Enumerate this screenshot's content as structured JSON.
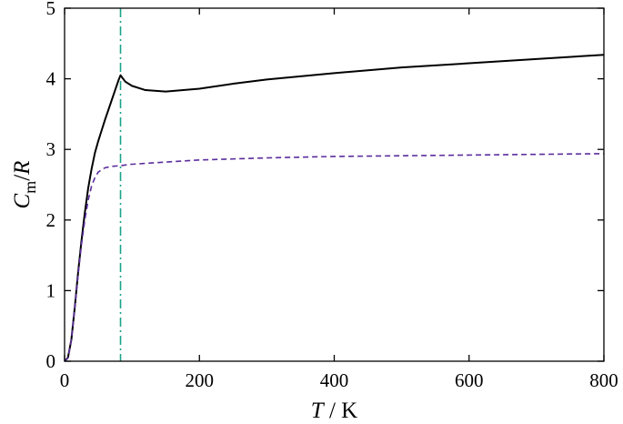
{
  "chart_data": {
    "type": "line",
    "xlabel": {
      "var": "T",
      "unit": "K"
    },
    "ylabel": {
      "var": "C",
      "sub": "m",
      "den": "R"
    },
    "xlim": [
      0,
      800
    ],
    "ylim": [
      0,
      5
    ],
    "x_ticks": [
      0,
      200,
      400,
      600,
      800
    ],
    "y_ticks": [
      0,
      1,
      2,
      3,
      4,
      5
    ],
    "grid": false,
    "legend": "none",
    "vertical_line": {
      "x": 83,
      "style": "dash-dot",
      "color": "#1aa38a"
    },
    "series": [
      {
        "style": "solid",
        "color": "#000000",
        "points": [
          [
            0,
            0
          ],
          [
            5,
            0.05
          ],
          [
            10,
            0.3
          ],
          [
            15,
            0.75
          ],
          [
            20,
            1.25
          ],
          [
            25,
            1.7
          ],
          [
            30,
            2.1
          ],
          [
            35,
            2.45
          ],
          [
            40,
            2.72
          ],
          [
            45,
            2.95
          ],
          [
            50,
            3.12
          ],
          [
            55,
            3.27
          ],
          [
            60,
            3.42
          ],
          [
            65,
            3.56
          ],
          [
            70,
            3.7
          ],
          [
            75,
            3.84
          ],
          [
            80,
            3.98
          ],
          [
            83,
            4.05
          ],
          [
            90,
            3.96
          ],
          [
            100,
            3.9
          ],
          [
            120,
            3.84
          ],
          [
            150,
            3.82
          ],
          [
            200,
            3.86
          ],
          [
            250,
            3.93
          ],
          [
            300,
            3.99
          ],
          [
            400,
            4.08
          ],
          [
            500,
            4.16
          ],
          [
            600,
            4.22
          ],
          [
            700,
            4.28
          ],
          [
            800,
            4.34
          ]
        ]
      },
      {
        "style": "dashed",
        "color": "#5b2c9c",
        "points": [
          [
            0,
            0
          ],
          [
            5,
            0.05
          ],
          [
            10,
            0.3
          ],
          [
            15,
            0.75
          ],
          [
            20,
            1.22
          ],
          [
            25,
            1.65
          ],
          [
            30,
            2.0
          ],
          [
            35,
            2.28
          ],
          [
            40,
            2.48
          ],
          [
            45,
            2.6
          ],
          [
            50,
            2.68
          ],
          [
            60,
            2.74
          ],
          [
            70,
            2.76
          ],
          [
            83,
            2.77
          ],
          [
            100,
            2.79
          ],
          [
            150,
            2.82
          ],
          [
            200,
            2.85
          ],
          [
            300,
            2.88
          ],
          [
            400,
            2.9
          ],
          [
            500,
            2.91
          ],
          [
            600,
            2.92
          ],
          [
            700,
            2.93
          ],
          [
            800,
            2.94
          ]
        ]
      }
    ]
  }
}
